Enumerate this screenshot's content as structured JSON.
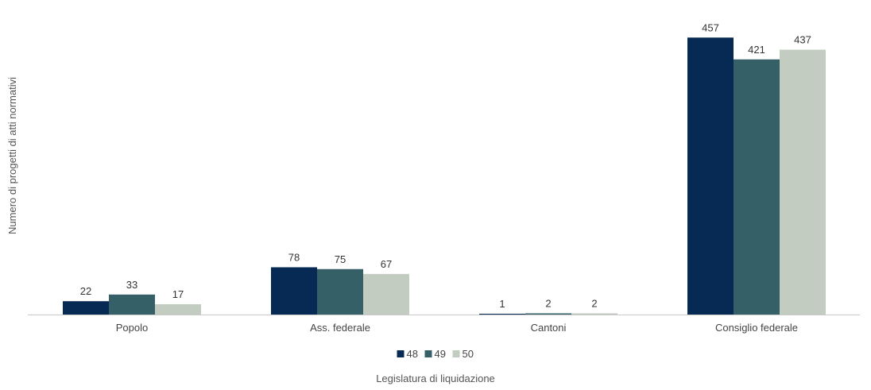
{
  "chart_data": {
    "type": "bar",
    "categories": [
      "Popolo",
      "Ass. federale",
      "Cantoni",
      "Consiglio federale"
    ],
    "series": [
      {
        "name": "48",
        "color": "#062a53",
        "values": [
          22,
          78,
          1,
          457
        ]
      },
      {
        "name": "49",
        "color": "#356068",
        "values": [
          33,
          75,
          2,
          421
        ]
      },
      {
        "name": "50",
        "color": "#c2ccc1",
        "values": [
          17,
          67,
          2,
          437
        ]
      }
    ],
    "title": "",
    "xlabel": "Legislatura di liquidazione",
    "ylabel": "Numero di progetti di atti normativi",
    "ylim": [
      0,
      460
    ],
    "grid": false,
    "legend_position": "bottom",
    "data_labels": true
  }
}
